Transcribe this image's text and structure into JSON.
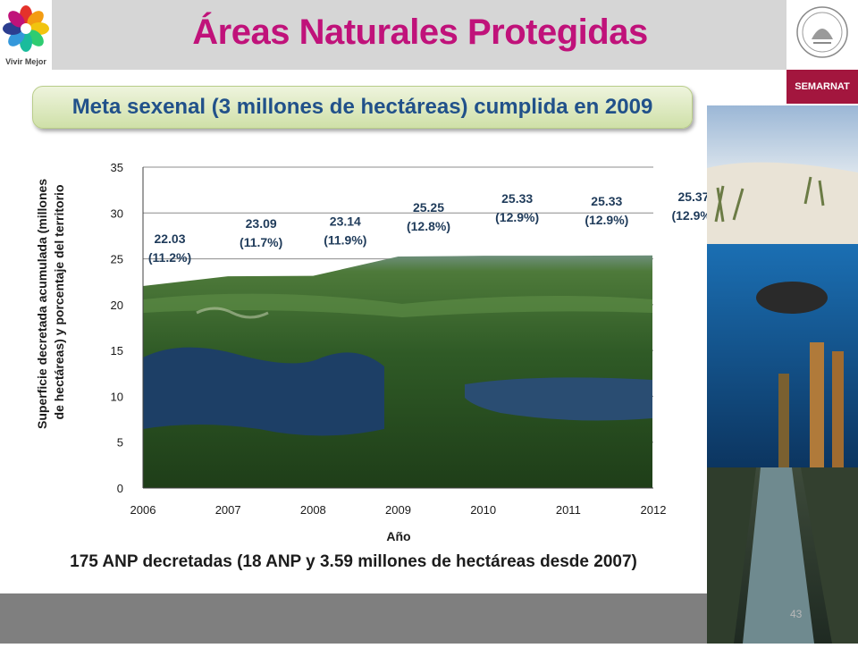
{
  "header": {
    "title": "Áreas Naturales Protegidas",
    "logo_text": "Vivir Mejor",
    "agency": "SEMARNAT"
  },
  "banner": {
    "text": "Meta sexenal (3 millones de hectáreas) cumplida en 2009"
  },
  "footnote": "175 ANP decretadas (18 ANP y 3.59 millones de hectáreas desde 2007)",
  "page_number": "43",
  "chart_data": {
    "type": "area",
    "x": [
      2006,
      2007,
      2008,
      2009,
      2010,
      2011,
      2012
    ],
    "values": [
      22.03,
      23.09,
      23.14,
      25.25,
      25.33,
      25.33,
      25.37
    ],
    "labels": [
      "22.03\n(11.2%)",
      "23.09\n(11.7%)",
      "23.14\n(11.9%)",
      "25.25\n(12.8%)",
      "25.33\n(12.9%)",
      "25.33\n(12.9%)",
      "25.37\n(12.9%)"
    ],
    "xlabel": "Año",
    "ylabel": "Superficie decretada acumulada (millones de hectáreas) y porcentaje del territorio",
    "ylabel_lines": [
      "Superficie decretada acumulada (millones",
      "de hectáreas) y porcentaje del territorio"
    ],
    "ylim": [
      0,
      35
    ],
    "yticks": [
      0,
      5,
      10,
      15,
      20,
      25,
      30,
      35
    ],
    "xticks": [
      2006,
      2007,
      2008,
      2009,
      2010,
      2011,
      2012
    ],
    "grid": true,
    "fill": "photo of lagoon and forest"
  }
}
